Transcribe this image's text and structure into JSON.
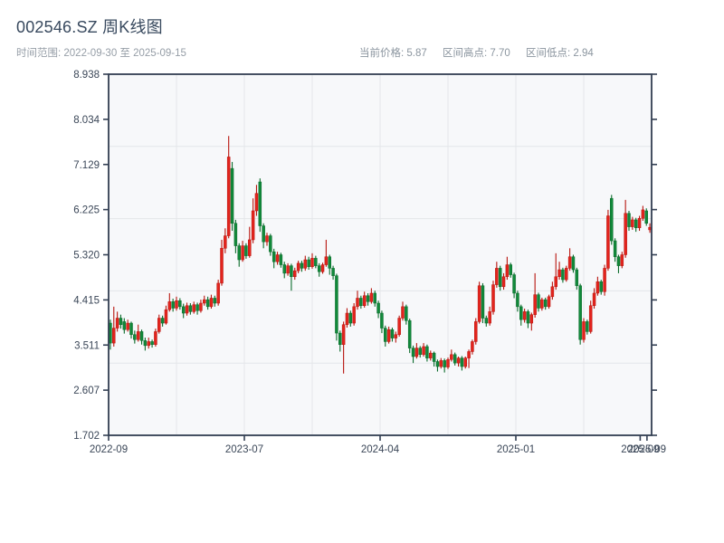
{
  "header": {
    "title": "002546.SZ 周K线图",
    "subtitle": "时间范围: 2022-09-30 至 2025-09-15",
    "stats": [
      "当前价格: 5.87",
      "区间高点: 7.70",
      "区间低点: 2.94"
    ]
  },
  "chart_data": {
    "type": "candlestick",
    "title": "002546.SZ 周K线图",
    "frequency": "weekly",
    "date_range": {
      "start": "2022-09-30",
      "end": "2025-09-15"
    },
    "summary": {
      "current_price": 5.87,
      "range_high": 7.7,
      "range_low": 2.94
    },
    "convention": "china-red-up-green-down",
    "ylim": [
      1.702,
      8.938
    ],
    "y_tick_values": [
      8.938,
      8.034,
      7.129,
      6.225,
      5.32,
      4.415,
      3.511,
      2.607,
      1.702
    ],
    "x_ticks": [
      {
        "label": "2022-09",
        "pos": 0.0
      },
      {
        "label": "2023-07",
        "pos": 0.25
      },
      {
        "label": "2024-04",
        "pos": 0.5
      },
      {
        "label": "2025-01",
        "pos": 0.75
      },
      {
        "label": "2025-09",
        "pos": 0.979
      },
      {
        "label": "2025-09",
        "pos": 0.9915
      }
    ],
    "grid": {
      "on": true,
      "x_divisions": 8,
      "y_divisions": 5
    },
    "colors": {
      "up_fill": "#e3241d",
      "up_edge": "#b8150f",
      "down_fill": "#11893a",
      "down_edge": "#0a6b2b",
      "plot_bg": "#f7f8fa",
      "grid": "#e4e6e9",
      "spine": "#323e52",
      "tick_label": "#3a4657"
    },
    "candles_format": [
      "open",
      "high",
      "low",
      "close"
    ],
    "candles": [
      [
        3.95,
        4.02,
        3.42,
        3.55
      ],
      [
        3.55,
        4.28,
        3.48,
        3.85
      ],
      [
        3.85,
        4.18,
        3.78,
        4.05
      ],
      [
        4.05,
        4.12,
        3.84,
        3.92
      ],
      [
        3.98,
        4.05,
        3.74,
        3.82
      ],
      [
        3.82,
        4.02,
        3.78,
        3.95
      ],
      [
        3.95,
        3.98,
        3.64,
        3.72
      ],
      [
        3.72,
        3.8,
        3.54,
        3.62
      ],
      [
        3.62,
        3.92,
        3.58,
        3.78
      ],
      [
        3.78,
        3.82,
        3.52,
        3.6
      ],
      [
        3.6,
        3.66,
        3.4,
        3.5
      ],
      [
        3.5,
        3.66,
        3.44,
        3.58
      ],
      [
        3.58,
        3.62,
        3.46,
        3.52
      ],
      [
        3.52,
        3.84,
        3.48,
        3.78
      ],
      [
        3.78,
        4.12,
        3.74,
        4.05
      ],
      [
        4.05,
        4.1,
        3.88,
        3.95
      ],
      [
        3.95,
        4.3,
        3.92,
        4.22
      ],
      [
        4.22,
        4.55,
        4.18,
        4.38
      ],
      [
        4.38,
        4.44,
        4.18,
        4.25
      ],
      [
        4.25,
        4.48,
        4.2,
        4.4
      ],
      [
        4.4,
        4.45,
        4.22,
        4.28
      ],
      [
        4.28,
        4.34,
        4.05,
        4.15
      ],
      [
        4.15,
        4.36,
        4.1,
        4.3
      ],
      [
        4.3,
        4.35,
        4.12,
        4.18
      ],
      [
        4.18,
        4.38,
        4.14,
        4.32
      ],
      [
        4.32,
        4.36,
        4.12,
        4.2
      ],
      [
        4.2,
        4.42,
        4.16,
        4.35
      ],
      [
        4.35,
        4.5,
        4.3,
        4.42
      ],
      [
        4.42,
        4.48,
        4.22,
        4.28
      ],
      [
        4.28,
        4.52,
        4.24,
        4.45
      ],
      [
        4.45,
        4.5,
        4.28,
        4.35
      ],
      [
        4.35,
        4.82,
        4.3,
        4.75
      ],
      [
        4.75,
        5.62,
        4.7,
        5.45
      ],
      [
        5.45,
        5.85,
        5.35,
        5.7
      ],
      [
        5.7,
        7.7,
        5.65,
        7.28
      ],
      [
        7.05,
        7.18,
        5.8,
        5.95
      ],
      [
        5.95,
        6.02,
        5.35,
        5.5
      ],
      [
        5.5,
        5.55,
        5.08,
        5.22
      ],
      [
        5.22,
        5.6,
        5.18,
        5.5
      ],
      [
        5.5,
        5.55,
        5.24,
        5.3
      ],
      [
        5.3,
        5.88,
        5.26,
        5.62
      ],
      [
        5.62,
        6.45,
        5.55,
        6.2
      ],
      [
        6.2,
        6.72,
        6.1,
        6.55
      ],
      [
        6.78,
        6.85,
        5.78,
        5.9
      ],
      [
        5.9,
        5.95,
        5.45,
        5.58
      ],
      [
        5.58,
        5.76,
        5.5,
        5.7
      ],
      [
        5.7,
        5.74,
        5.3,
        5.38
      ],
      [
        5.38,
        5.44,
        5.05,
        5.18
      ],
      [
        5.18,
        5.38,
        5.12,
        5.32
      ],
      [
        5.32,
        5.36,
        5.06,
        5.12
      ],
      [
        5.12,
        5.18,
        4.85,
        4.95
      ],
      [
        4.95,
        5.15,
        4.9,
        5.1
      ],
      [
        5.1,
        5.14,
        4.6,
        4.88
      ],
      [
        4.88,
        5.06,
        4.82,
        5.0
      ],
      [
        5.0,
        5.2,
        4.95,
        5.15
      ],
      [
        5.15,
        5.2,
        4.98,
        5.05
      ],
      [
        5.05,
        5.3,
        5.0,
        5.22
      ],
      [
        5.22,
        5.28,
        5.02,
        5.08
      ],
      [
        5.08,
        5.35,
        5.04,
        5.25
      ],
      [
        5.25,
        5.3,
        5.05,
        5.1
      ],
      [
        5.1,
        5.15,
        4.88,
        4.98
      ],
      [
        4.98,
        5.16,
        4.94,
        5.12
      ],
      [
        5.12,
        5.62,
        5.08,
        5.28
      ],
      [
        5.28,
        5.32,
        4.92,
        5.05
      ],
      [
        5.05,
        5.1,
        4.82,
        4.9
      ],
      [
        4.9,
        4.94,
        3.6,
        3.75
      ],
      [
        3.75,
        3.8,
        3.38,
        3.52
      ],
      [
        3.52,
        3.98,
        2.94,
        3.92
      ],
      [
        3.92,
        4.25,
        3.86,
        4.15
      ],
      [
        4.15,
        4.2,
        3.88,
        3.95
      ],
      [
        3.95,
        4.35,
        3.9,
        4.28
      ],
      [
        4.28,
        4.6,
        4.22,
        4.45
      ],
      [
        4.45,
        4.5,
        4.24,
        4.3
      ],
      [
        4.3,
        4.58,
        4.26,
        4.5
      ],
      [
        4.5,
        4.55,
        4.3,
        4.38
      ],
      [
        4.38,
        4.65,
        4.34,
        4.55
      ],
      [
        4.55,
        4.6,
        4.28,
        4.35
      ],
      [
        4.35,
        4.4,
        4.05,
        4.15
      ],
      [
        4.15,
        4.2,
        3.75,
        3.85
      ],
      [
        3.85,
        3.9,
        3.48,
        3.58
      ],
      [
        3.58,
        3.88,
        3.54,
        3.82
      ],
      [
        3.82,
        3.86,
        3.58,
        3.65
      ],
      [
        3.65,
        3.78,
        3.56,
        3.72
      ],
      [
        3.72,
        4.1,
        3.68,
        4.05
      ],
      [
        4.05,
        4.38,
        4.0,
        4.28
      ],
      [
        4.28,
        4.32,
        3.92,
        4.0
      ],
      [
        4.0,
        4.04,
        3.35,
        3.45
      ],
      [
        3.45,
        3.5,
        3.15,
        3.28
      ],
      [
        3.28,
        3.55,
        3.24,
        3.45
      ],
      [
        3.45,
        3.49,
        3.26,
        3.32
      ],
      [
        3.32,
        3.55,
        3.28,
        3.48
      ],
      [
        3.48,
        3.52,
        3.18,
        3.25
      ],
      [
        3.25,
        3.4,
        3.2,
        3.35
      ],
      [
        3.35,
        3.38,
        3.08,
        3.18
      ],
      [
        3.18,
        3.22,
        2.98,
        3.08
      ],
      [
        3.08,
        3.25,
        3.04,
        3.2
      ],
      [
        3.2,
        3.24,
        2.96,
        3.07
      ],
      [
        3.07,
        3.26,
        3.03,
        3.22
      ],
      [
        3.22,
        3.42,
        3.18,
        3.32
      ],
      [
        3.32,
        3.36,
        3.1,
        3.15
      ],
      [
        3.15,
        3.28,
        3.08,
        3.25
      ],
      [
        3.25,
        3.29,
        3.0,
        3.08
      ],
      [
        3.08,
        3.28,
        3.04,
        3.25
      ],
      [
        3.25,
        3.42,
        3.05,
        3.38
      ],
      [
        3.38,
        3.62,
        3.32,
        3.58
      ],
      [
        3.58,
        4.05,
        3.52,
        3.98
      ],
      [
        3.98,
        4.78,
        3.94,
        4.7
      ],
      [
        4.7,
        4.75,
        3.95,
        4.05
      ],
      [
        4.05,
        4.1,
        3.88,
        3.95
      ],
      [
        3.95,
        4.28,
        3.9,
        4.18
      ],
      [
        4.18,
        4.8,
        4.12,
        4.72
      ],
      [
        4.72,
        5.18,
        4.66,
        5.05
      ],
      [
        5.05,
        5.1,
        4.6,
        4.68
      ],
      [
        4.68,
        4.95,
        4.62,
        4.88
      ],
      [
        4.88,
        5.28,
        4.82,
        5.12
      ],
      [
        5.12,
        5.16,
        4.86,
        4.92
      ],
      [
        4.92,
        4.96,
        4.45,
        4.55
      ],
      [
        4.55,
        4.6,
        4.18,
        4.28
      ],
      [
        4.28,
        4.32,
        3.9,
        4.02
      ],
      [
        4.02,
        4.24,
        3.96,
        4.18
      ],
      [
        4.18,
        4.22,
        3.85,
        3.95
      ],
      [
        3.95,
        4.16,
        3.8,
        4.12
      ],
      [
        4.12,
        4.95,
        4.06,
        4.52
      ],
      [
        4.52,
        4.56,
        4.18,
        4.25
      ],
      [
        4.25,
        4.46,
        4.2,
        4.42
      ],
      [
        4.42,
        4.46,
        4.22,
        4.28
      ],
      [
        4.28,
        4.52,
        4.24,
        4.48
      ],
      [
        4.48,
        4.78,
        4.42,
        4.68
      ],
      [
        4.68,
        5.35,
        4.62,
        4.88
      ],
      [
        4.88,
        5.18,
        4.82,
        5.02
      ],
      [
        5.02,
        5.06,
        4.76,
        4.82
      ],
      [
        4.82,
        5.1,
        4.78,
        5.05
      ],
      [
        5.05,
        5.45,
        5.0,
        5.28
      ],
      [
        5.28,
        5.32,
        4.96,
        5.02
      ],
      [
        5.02,
        5.06,
        4.62,
        4.7
      ],
      [
        4.7,
        4.74,
        3.52,
        3.62
      ],
      [
        3.62,
        4.05,
        3.56,
        3.98
      ],
      [
        3.98,
        4.02,
        3.72,
        3.78
      ],
      [
        3.78,
        4.4,
        3.74,
        4.3
      ],
      [
        4.3,
        4.65,
        4.24,
        4.55
      ],
      [
        4.55,
        4.88,
        4.5,
        4.78
      ],
      [
        4.78,
        4.82,
        4.52,
        4.58
      ],
      [
        4.58,
        5.12,
        4.5,
        5.05
      ],
      [
        5.05,
        6.22,
        5.0,
        6.1
      ],
      [
        6.45,
        6.52,
        5.52,
        5.6
      ],
      [
        5.6,
        5.65,
        5.18,
        5.28
      ],
      [
        5.28,
        5.32,
        4.95,
        5.1
      ],
      [
        5.1,
        5.38,
        5.05,
        5.32
      ],
      [
        5.32,
        6.42,
        5.26,
        6.15
      ],
      [
        6.15,
        6.2,
        5.8,
        5.88
      ],
      [
        5.88,
        6.08,
        5.82,
        6.02
      ],
      [
        6.02,
        6.06,
        5.78,
        5.86
      ],
      [
        5.86,
        6.1,
        5.8,
        6.05
      ],
      [
        6.05,
        6.3,
        6.0,
        6.22
      ],
      [
        6.2,
        6.25,
        5.9,
        5.95
      ],
      [
        5.82,
        5.95,
        5.76,
        5.87
      ]
    ]
  }
}
